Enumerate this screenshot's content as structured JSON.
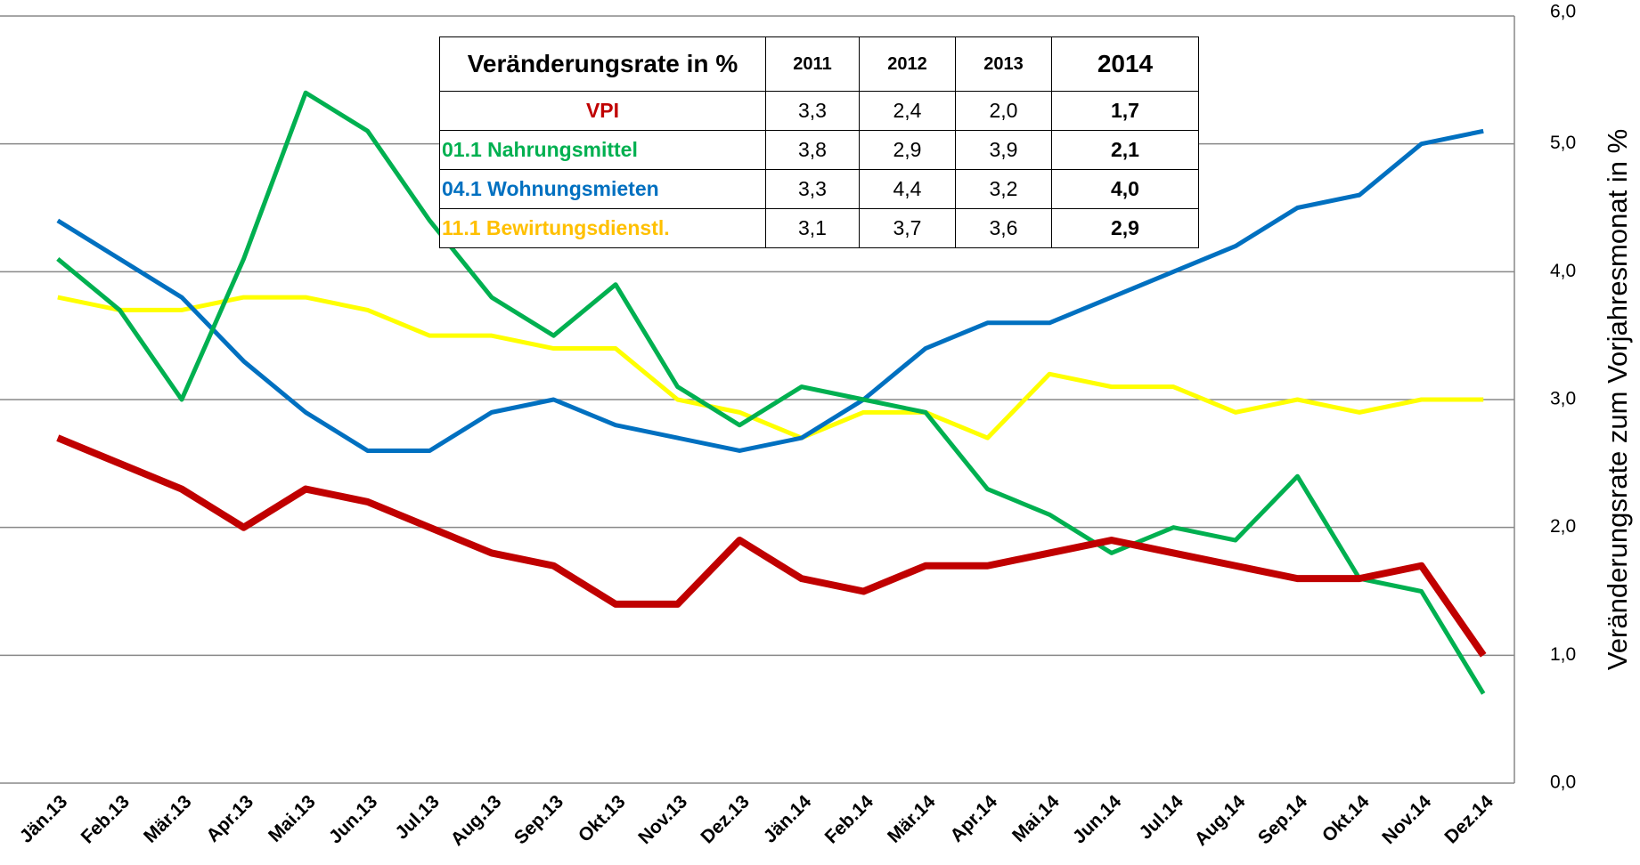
{
  "chart_data": {
    "type": "line",
    "y_label": "Veränderungsrate zum Vorjahresmonat in %",
    "categories": [
      "Jän.13",
      "Feb.13",
      "Mär.13",
      "Apr.13",
      "Mai.13",
      "Jun.13",
      "Jul.13",
      "Aug.13",
      "Sep.13",
      "Okt.13",
      "Nov.13",
      "Dez.13",
      "Jän.14",
      "Feb.14",
      "Mär.14",
      "Apr.14",
      "Mai.14",
      "Jun.14",
      "Jul.14",
      "Aug.14",
      "Sep.14",
      "Okt.14",
      "Nov.14",
      "Dez.14"
    ],
    "series": [
      {
        "color": "#ffff00",
        "values": [
          3.8,
          3.7,
          3.7,
          3.8,
          3.8,
          3.7,
          3.5,
          3.5,
          3.4,
          3.4,
          3.0,
          2.9,
          2.7,
          2.9,
          2.9,
          2.7,
          3.2,
          3.1,
          3.1,
          2.9,
          3.0,
          2.9,
          3.0,
          3.0
        ]
      },
      {
        "color": "#0070c0",
        "values": [
          4.4,
          4.1,
          3.8,
          3.3,
          2.9,
          2.6,
          2.6,
          2.9,
          3.0,
          2.8,
          2.7,
          2.6,
          2.7,
          3.0,
          3.4,
          3.6,
          3.6,
          3.8,
          4.0,
          4.2,
          4.5,
          4.6,
          5.0,
          5.1
        ]
      },
      {
        "color": "#00b050",
        "values": [
          4.1,
          3.7,
          3.0,
          4.1,
          5.4,
          5.1,
          4.4,
          3.8,
          3.5,
          3.9,
          3.1,
          2.8,
          3.1,
          3.0,
          2.9,
          2.3,
          2.1,
          1.8,
          2.0,
          1.9,
          2.4,
          1.6,
          1.5,
          0.7
        ]
      },
      {
        "color": "#c00000",
        "values": [
          2.7,
          2.5,
          2.3,
          2.0,
          2.3,
          2.2,
          2.0,
          1.8,
          1.7,
          1.4,
          1.4,
          1.9,
          1.6,
          1.5,
          1.7,
          1.7,
          1.8,
          1.9,
          1.8,
          1.7,
          1.6,
          1.6,
          1.7,
          1.0
        ]
      }
    ],
    "ylim": [
      0,
      6
    ],
    "yticks": [
      {
        "value": 0,
        "label": "0,0"
      },
      {
        "value": 1,
        "label": "1,0"
      },
      {
        "value": 2,
        "label": "2,0"
      },
      {
        "value": 3,
        "label": "3,0"
      },
      {
        "value": 4,
        "label": "4,0"
      },
      {
        "value": 5,
        "label": "5,0"
      },
      {
        "value": 6,
        "label": "6,0"
      }
    ],
    "grid": true
  },
  "table": {
    "header": [
      "Veränderungsrate in %",
      "2011",
      "2012",
      "2013",
      "2014"
    ],
    "rows": [
      {
        "label": "VPI",
        "color": "#c00000",
        "cells": [
          "3,3",
          "2,4",
          "2,0",
          "1,7"
        ]
      },
      {
        "label": "01.1  Nahrungsmittel",
        "color": "#00b050",
        "cells": [
          "3,8",
          "2,9",
          "3,9",
          "2,1"
        ]
      },
      {
        "label": "04.1 Wohnungsmieten",
        "color": "#0070c0",
        "cells": [
          "3,3",
          "4,4",
          "3,2",
          "4,0"
        ]
      },
      {
        "label": "11.1 Bewirtungsdienstl.",
        "color": "#ffc000",
        "cells": [
          "3,1",
          "3,7",
          "3,6",
          "2,9"
        ]
      }
    ]
  }
}
